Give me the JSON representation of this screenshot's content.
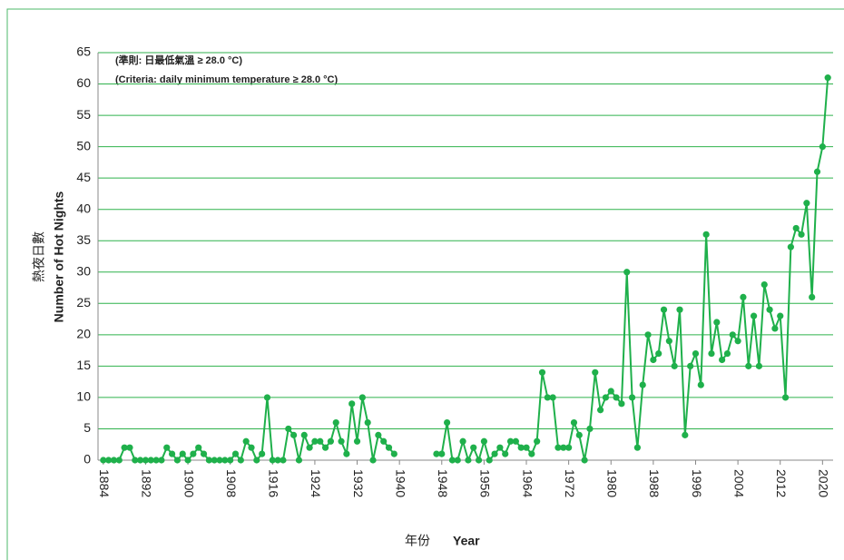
{
  "chart_data": {
    "type": "line",
    "annotations": [
      "(準則: 日最低氣溫 ≥ 28.0 °C)",
      "(Criteria: daily minimum temperature ≥ 28.0 °C)"
    ],
    "y_label": [
      "熱夜日數",
      "Number of Hot Nights"
    ],
    "x_label": [
      "年份",
      "Year"
    ],
    "x": [
      1884,
      1885,
      1886,
      1887,
      1888,
      1889,
      1890,
      1891,
      1892,
      1893,
      1894,
      1895,
      1896,
      1897,
      1898,
      1899,
      1900,
      1901,
      1902,
      1903,
      1904,
      1905,
      1906,
      1907,
      1908,
      1909,
      1910,
      1911,
      1912,
      1913,
      1914,
      1915,
      1916,
      1917,
      1918,
      1919,
      1920,
      1921,
      1922,
      1923,
      1924,
      1925,
      1926,
      1927,
      1928,
      1929,
      1930,
      1931,
      1932,
      1933,
      1934,
      1935,
      1936,
      1937,
      1938,
      1939,
      1940,
      1941,
      1942,
      1943,
      1944,
      1945,
      1946,
      1947,
      1948,
      1949,
      1950,
      1951,
      1952,
      1953,
      1954,
      1955,
      1956,
      1957,
      1958,
      1959,
      1960,
      1961,
      1962,
      1963,
      1964,
      1965,
      1966,
      1967,
      1968,
      1969,
      1970,
      1971,
      1972,
      1973,
      1974,
      1975,
      1976,
      1977,
      1978,
      1979,
      1980,
      1981,
      1982,
      1983,
      1984,
      1985,
      1986,
      1987,
      1988,
      1989,
      1990,
      1991,
      1992,
      1993,
      1994,
      1995,
      1996,
      1997,
      1998,
      1999,
      2000,
      2001,
      2002,
      2003,
      2004,
      2005,
      2006,
      2007,
      2008,
      2009,
      2010,
      2011,
      2012,
      2013,
      2014,
      2015,
      2016,
      2017,
      2018,
      2019,
      2020,
      2021
    ],
    "series": [
      {
        "color": "#1fb04b",
        "values": [
          0,
          0,
          0,
          0,
          2,
          2,
          0,
          0,
          0,
          0,
          0,
          0,
          2,
          1,
          0,
          1,
          0,
          1,
          2,
          1,
          0,
          0,
          0,
          0,
          0,
          1,
          0,
          3,
          2,
          0,
          1,
          10,
          0,
          0,
          0,
          5,
          4,
          0,
          4,
          2,
          3,
          3,
          2,
          3,
          6,
          3,
          1,
          9,
          3,
          10,
          6,
          0,
          4,
          3,
          2,
          1,
          null,
          null,
          null,
          null,
          null,
          null,
          null,
          1,
          1,
          6,
          0,
          0,
          3,
          0,
          2,
          0,
          3,
          0,
          1,
          2,
          1,
          3,
          3,
          2,
          2,
          1,
          3,
          14,
          10,
          10,
          2,
          2,
          2,
          6,
          4,
          0,
          5,
          14,
          8,
          10,
          11,
          10,
          9,
          30,
          10,
          2,
          12,
          20,
          16,
          17,
          24,
          19,
          15,
          24,
          4,
          15,
          17,
          12,
          36,
          17,
          22,
          16,
          17,
          20,
          19,
          26,
          15,
          23,
          15,
          28,
          24,
          21,
          23,
          10,
          34,
          37,
          36,
          41,
          26,
          46,
          50,
          61
        ]
      }
    ],
    "xlim": [
      1883,
      2022
    ],
    "xticks": [
      1884,
      1892,
      1900,
      1908,
      1916,
      1924,
      1932,
      1940,
      1948,
      1956,
      1964,
      1972,
      1980,
      1988,
      1996,
      2004,
      2012,
      2020
    ],
    "ylim": [
      0,
      65
    ],
    "yticks": [
      0,
      5,
      10,
      15,
      20,
      25,
      30,
      35,
      40,
      45,
      50,
      55,
      60,
      65
    ],
    "grid": true,
    "grid_color": "#2fb24c"
  }
}
